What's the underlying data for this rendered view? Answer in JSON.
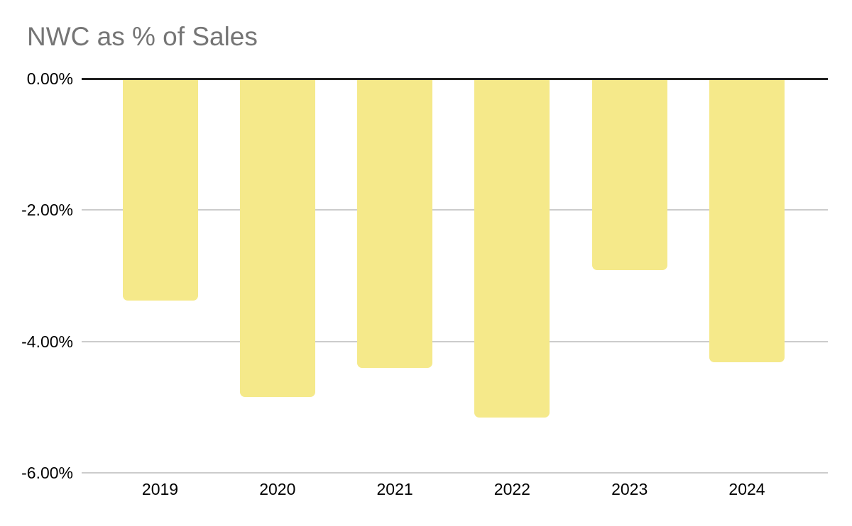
{
  "chart_data": {
    "type": "bar",
    "title": "NWC as % of Sales",
    "categories": [
      "2019",
      "2020",
      "2021",
      "2022",
      "2023",
      "2024"
    ],
    "values": [
      -3.38,
      -4.84,
      -4.4,
      -5.16,
      -2.91,
      -4.32
    ],
    "value_unit": "percent_of_sales",
    "xlabel": "",
    "ylabel": "",
    "ylim": [
      -6,
      0
    ],
    "y_ticks": [
      {
        "value": 0,
        "label": "0.00%"
      },
      {
        "value": -2,
        "label": "-2.00%"
      },
      {
        "value": -4,
        "label": "-4.00%"
      },
      {
        "value": -6,
        "label": "-6.00%"
      }
    ],
    "grid": true,
    "legend": "none",
    "orientation": "vertical-negative",
    "colors": {
      "bar": "#F5E98A",
      "title_text": "#757575",
      "axis_text": "#000000",
      "gridline": "#CCCCCC",
      "zero_line": "#212121",
      "background": "#FFFFFF"
    }
  }
}
